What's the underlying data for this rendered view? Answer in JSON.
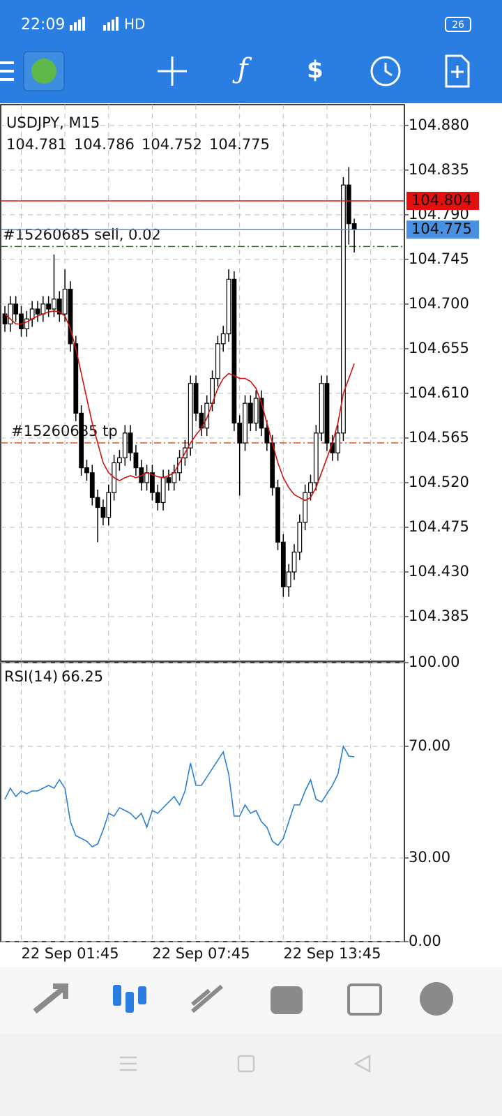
{
  "status_bar": {
    "time": "22:09",
    "network": "HD",
    "battery": "26"
  },
  "chart_data": [
    {
      "type": "candlestick",
      "symbol": "USDJPY, M15",
      "categories": [
        null,
        null,
        null,
        "22 Sep 01:45",
        null,
        null,
        null,
        null,
        null,
        null,
        null,
        null,
        null,
        null,
        null,
        null,
        null,
        null,
        null,
        null,
        null,
        null,
        null,
        null,
        null,
        null,
        null,
        "22 Sep 07:45",
        null,
        null,
        null,
        null,
        null,
        null,
        null,
        null,
        null,
        null,
        null,
        null,
        null,
        null,
        null,
        null,
        null,
        null,
        null,
        null,
        null,
        null,
        null,
        "22 Sep 13:45",
        null,
        null,
        null,
        null,
        null,
        null,
        null,
        null,
        null,
        null,
        null,
        null,
        null
      ],
      "open": [
        104.69,
        104.68,
        104.7,
        104.69,
        104.675,
        104.685,
        104.695,
        104.69,
        104.7,
        104.695,
        104.705,
        104.69,
        104.715,
        104.66,
        104.59,
        104.535,
        104.53,
        104.505,
        104.495,
        104.485,
        104.51,
        104.54,
        104.545,
        104.57,
        104.55,
        104.535,
        104.52,
        104.53,
        104.51,
        104.5,
        104.525,
        104.52,
        104.53,
        104.545,
        104.555,
        104.62,
        104.59,
        104.575,
        104.6,
        104.625,
        104.66,
        104.67,
        104.725,
        104.58,
        104.56,
        104.6,
        104.58,
        104.605,
        104.575,
        104.56,
        104.515,
        104.46,
        104.415,
        104.43,
        104.45,
        104.48,
        104.51,
        104.52,
        104.57,
        104.62,
        104.56,
        104.55,
        104.57,
        104.82,
        104.781
      ],
      "high": [
        104.698,
        104.708,
        104.708,
        104.698,
        104.693,
        104.703,
        104.703,
        104.708,
        104.708,
        104.75,
        104.713,
        104.735,
        104.723,
        104.668,
        104.598,
        104.543,
        104.538,
        104.513,
        104.503,
        104.518,
        104.548,
        104.553,
        104.578,
        104.578,
        104.558,
        104.543,
        104.538,
        104.538,
        104.518,
        104.533,
        104.533,
        104.538,
        104.553,
        104.563,
        104.628,
        104.628,
        104.598,
        104.608,
        104.633,
        104.668,
        104.678,
        104.735,
        104.733,
        104.588,
        104.608,
        104.608,
        104.613,
        104.613,
        104.583,
        104.568,
        104.523,
        104.468,
        104.438,
        104.458,
        104.488,
        104.518,
        104.528,
        104.578,
        104.628,
        104.628,
        104.568,
        104.578,
        104.828,
        104.838,
        104.786
      ],
      "low": [
        104.672,
        104.672,
        104.682,
        104.667,
        104.667,
        104.677,
        104.682,
        104.682,
        104.687,
        104.687,
        104.682,
        104.682,
        104.652,
        104.582,
        104.527,
        104.522,
        104.497,
        104.46,
        104.477,
        104.477,
        104.502,
        104.532,
        104.537,
        104.542,
        104.527,
        104.512,
        104.512,
        104.502,
        104.492,
        104.492,
        104.512,
        104.512,
        104.522,
        104.537,
        104.547,
        104.582,
        104.567,
        104.567,
        104.592,
        104.617,
        104.652,
        104.662,
        104.572,
        104.507,
        104.552,
        104.572,
        104.572,
        104.567,
        104.552,
        104.507,
        104.452,
        104.405,
        104.405,
        104.422,
        104.442,
        104.472,
        104.502,
        104.512,
        104.562,
        104.552,
        104.542,
        104.542,
        104.562,
        104.76,
        104.752
      ],
      "close": [
        104.68,
        104.7,
        104.69,
        104.675,
        104.685,
        104.695,
        104.69,
        104.7,
        104.695,
        104.705,
        104.69,
        104.715,
        104.66,
        104.59,
        104.535,
        104.53,
        104.505,
        104.495,
        104.485,
        104.51,
        104.54,
        104.545,
        104.57,
        104.55,
        104.535,
        104.52,
        104.53,
        104.51,
        104.5,
        104.525,
        104.52,
        104.53,
        104.545,
        104.555,
        104.62,
        104.59,
        104.575,
        104.6,
        104.625,
        104.66,
        104.67,
        104.725,
        104.58,
        104.56,
        104.6,
        104.58,
        104.605,
        104.575,
        104.56,
        104.515,
        104.46,
        104.415,
        104.43,
        104.45,
        104.48,
        104.51,
        104.52,
        104.57,
        104.62,
        104.56,
        104.55,
        104.57,
        104.82,
        104.781,
        104.775
      ],
      "ma": {
        "color": "#d01010",
        "values": [
          104.69,
          104.685,
          104.68,
          104.68,
          104.682,
          104.685,
          104.688,
          104.69,
          104.692,
          104.693,
          104.692,
          104.688,
          104.675,
          104.655,
          104.63,
          104.605,
          104.58,
          104.56,
          104.54,
          104.53,
          104.525,
          104.522,
          104.525,
          104.527,
          104.525,
          104.527,
          104.53,
          104.528,
          104.526,
          104.525,
          104.527,
          104.53,
          104.54,
          104.55,
          104.56,
          104.568,
          104.575,
          104.585,
          104.6,
          104.615,
          104.625,
          104.63,
          104.628,
          104.625,
          104.625,
          104.622,
          104.615,
          104.6,
          104.58,
          104.56,
          104.54,
          104.525,
          104.515,
          104.508,
          104.505,
          104.502,
          104.505,
          104.515,
          104.53,
          104.545,
          104.56,
          104.58,
          104.61,
          104.625,
          104.64
        ]
      },
      "ylim": [
        104.34,
        104.901
      ],
      "yticks": [
        {
          "value": 104.88,
          "label": "104.880"
        },
        104.835,
        {
          "value": 104.79,
          "label": "104.790"
        },
        104.745,
        {
          "value": 104.7,
          "label": "104.700"
        },
        104.655,
        {
          "value": 104.61,
          "label": "104.610"
        },
        104.565,
        {
          "value": 104.52,
          "label": "104.520"
        },
        104.475,
        {
          "value": 104.43,
          "label": "104.430"
        },
        104.385
      ],
      "ask_line": {
        "value": 104.804,
        "color": "#e31010"
      },
      "bid_line": {
        "value": 104.775,
        "color": "#4a90e2"
      },
      "orders": [
        {
          "label": "#15260685 sell, 0.02",
          "value": 104.758,
          "color": "#1a7a1a"
        },
        {
          "label": "#15260685 tp",
          "value": 104.56,
          "color": "#e0501a"
        }
      ],
      "grid": true
    },
    {
      "type": "line",
      "title": "RSI(14)",
      "color": "#2a7fd4",
      "values": [
        51,
        55,
        52,
        54,
        53,
        54,
        54,
        55,
        56,
        55,
        58,
        55,
        43,
        38,
        37,
        36,
        34,
        35,
        40,
        46,
        45,
        48,
        47,
        46,
        44,
        46,
        41,
        47,
        46,
        48,
        50,
        52,
        49,
        54,
        64,
        56,
        56,
        59,
        62,
        65,
        68,
        60,
        45,
        45,
        49,
        46,
        47,
        43,
        41,
        36,
        34.5,
        37,
        43,
        49,
        49,
        54,
        58,
        51,
        50,
        53,
        56,
        60,
        70,
        66.5,
        66.25
      ],
      "ylim": [
        0,
        100
      ],
      "yticks": [
        {
          "value": 100,
          "label": "100.00"
        },
        {
          "value": 70,
          "label": "70.00"
        },
        {
          "value": 30,
          "label": "30.00"
        },
        {
          "value": 0,
          "label": "0.00"
        }
      ],
      "grid": true
    }
  ]
}
